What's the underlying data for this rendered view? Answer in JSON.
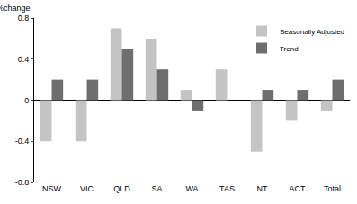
{
  "chart_data": {
    "type": "bar",
    "y_label": "%change",
    "categories": [
      "NSW",
      "VIC",
      "QLD",
      "SA",
      "WA",
      "TAS",
      "NT",
      "ACT",
      "Total"
    ],
    "series": [
      {
        "name": "Seasonally Adjusted",
        "color": "#c4c4c4",
        "values": [
          -0.4,
          -0.4,
          0.7,
          0.6,
          0.1,
          0.3,
          -0.5,
          -0.2,
          -0.1
        ]
      },
      {
        "name": "Trend",
        "color": "#6e6e6e",
        "values": [
          0.2,
          0.2,
          0.5,
          0.3,
          -0.1,
          0.0,
          0.1,
          0.1,
          0.2
        ]
      }
    ],
    "ylim": [
      -0.8,
      0.8
    ],
    "yticks": [
      -0.8,
      -0.4,
      0,
      0.4,
      0.8
    ],
    "grid": false,
    "legend": "upper right"
  }
}
